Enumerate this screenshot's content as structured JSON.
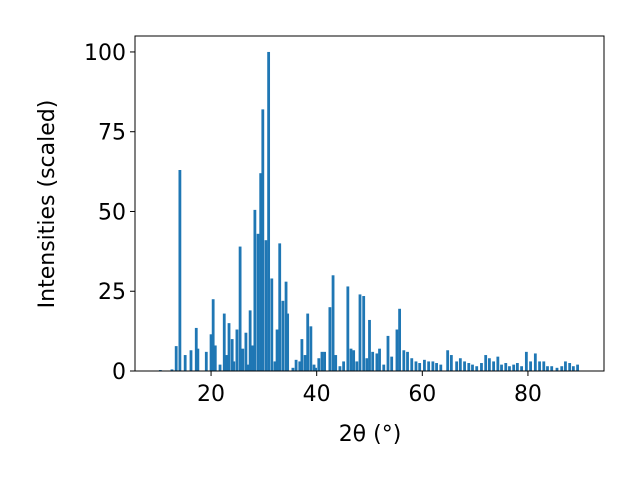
{
  "chart_data": {
    "type": "bar",
    "xlabel": "2θ (°)",
    "ylabel": "Intensities (scaled)",
    "color": "#1f77b4",
    "x": [
      10.4,
      12.6,
      13.4,
      14.1,
      15.1,
      16.2,
      17.2,
      17.5,
      19.1,
      20.0,
      20.4,
      20.8,
      21.7,
      22.5,
      23.0,
      23.4,
      24.0,
      24.3,
      24.9,
      25.5,
      26.0,
      26.6,
      27.0,
      27.4,
      27.8,
      28.3,
      28.9,
      29.4,
      29.8,
      30.4,
      30.9,
      31.5,
      32.1,
      32.5,
      33.0,
      33.6,
      34.2,
      34.5,
      35.5,
      36.1,
      36.8,
      37.2,
      37.8,
      38.3,
      38.9,
      39.5,
      39.8,
      40.4,
      41.0,
      41.5,
      42.5,
      43.1,
      43.6,
      44.4,
      45.1,
      45.9,
      46.5,
      47.0,
      47.6,
      48.2,
      48.9,
      49.5,
      50.0,
      50.6,
      51.4,
      51.9,
      52.7,
      53.5,
      54.2,
      55.2,
      55.7,
      56.5,
      57.2,
      58.0,
      58.8,
      59.5,
      60.4,
      61.2,
      62.0,
      62.7,
      63.5,
      64.8,
      65.5,
      66.5,
      67.2,
      68.0,
      68.8,
      69.5,
      70.3,
      71.2,
      72.0,
      72.7,
      73.5,
      74.3,
      75.0,
      75.8,
      76.5,
      77.3,
      78.0,
      78.8,
      79.7,
      80.5,
      81.4,
      82.2,
      83.0,
      83.7,
      84.5,
      85.5,
      86.4,
      87.1,
      87.9,
      88.6,
      89.4
    ],
    "values": [
      0.3,
      0.5,
      7.8,
      63,
      5,
      6.5,
      13.5,
      7,
      6,
      11.5,
      22.5,
      8,
      2,
      18,
      5,
      15,
      10,
      3,
      13,
      39,
      7,
      12,
      2,
      19,
      8,
      50.5,
      43,
      62,
      82,
      41,
      100,
      29,
      3,
      13,
      40,
      22,
      28,
      18,
      1,
      3.5,
      3,
      10,
      5,
      18,
      14,
      2,
      1,
      4,
      6,
      6,
      20,
      30,
      5,
      1.5,
      3,
      26.5,
      7,
      6.5,
      3,
      24,
      23.5,
      4,
      16,
      6,
      5.5,
      7,
      2,
      11,
      4.5,
      13,
      19.5,
      6.5,
      6,
      4,
      3,
      2.5,
      3.5,
      3,
      3,
      2.5,
      2,
      6.5,
      5,
      3,
      4,
      3,
      2.5,
      2,
      1.5,
      2.5,
      5,
      4,
      3,
      4.5,
      2,
      2.5,
      1.5,
      2,
      2.5,
      1.5,
      6,
      3,
      5.5,
      3,
      3,
      1.5,
      1.5,
      1,
      1.5,
      3,
      2.5,
      1.5,
      2
    ],
    "xlim": [
      5.6,
      94.4
    ],
    "ylim": [
      0,
      105
    ],
    "xticks": [
      20,
      40,
      60,
      80
    ],
    "yticks": [
      0,
      25,
      50,
      75,
      100
    ]
  }
}
